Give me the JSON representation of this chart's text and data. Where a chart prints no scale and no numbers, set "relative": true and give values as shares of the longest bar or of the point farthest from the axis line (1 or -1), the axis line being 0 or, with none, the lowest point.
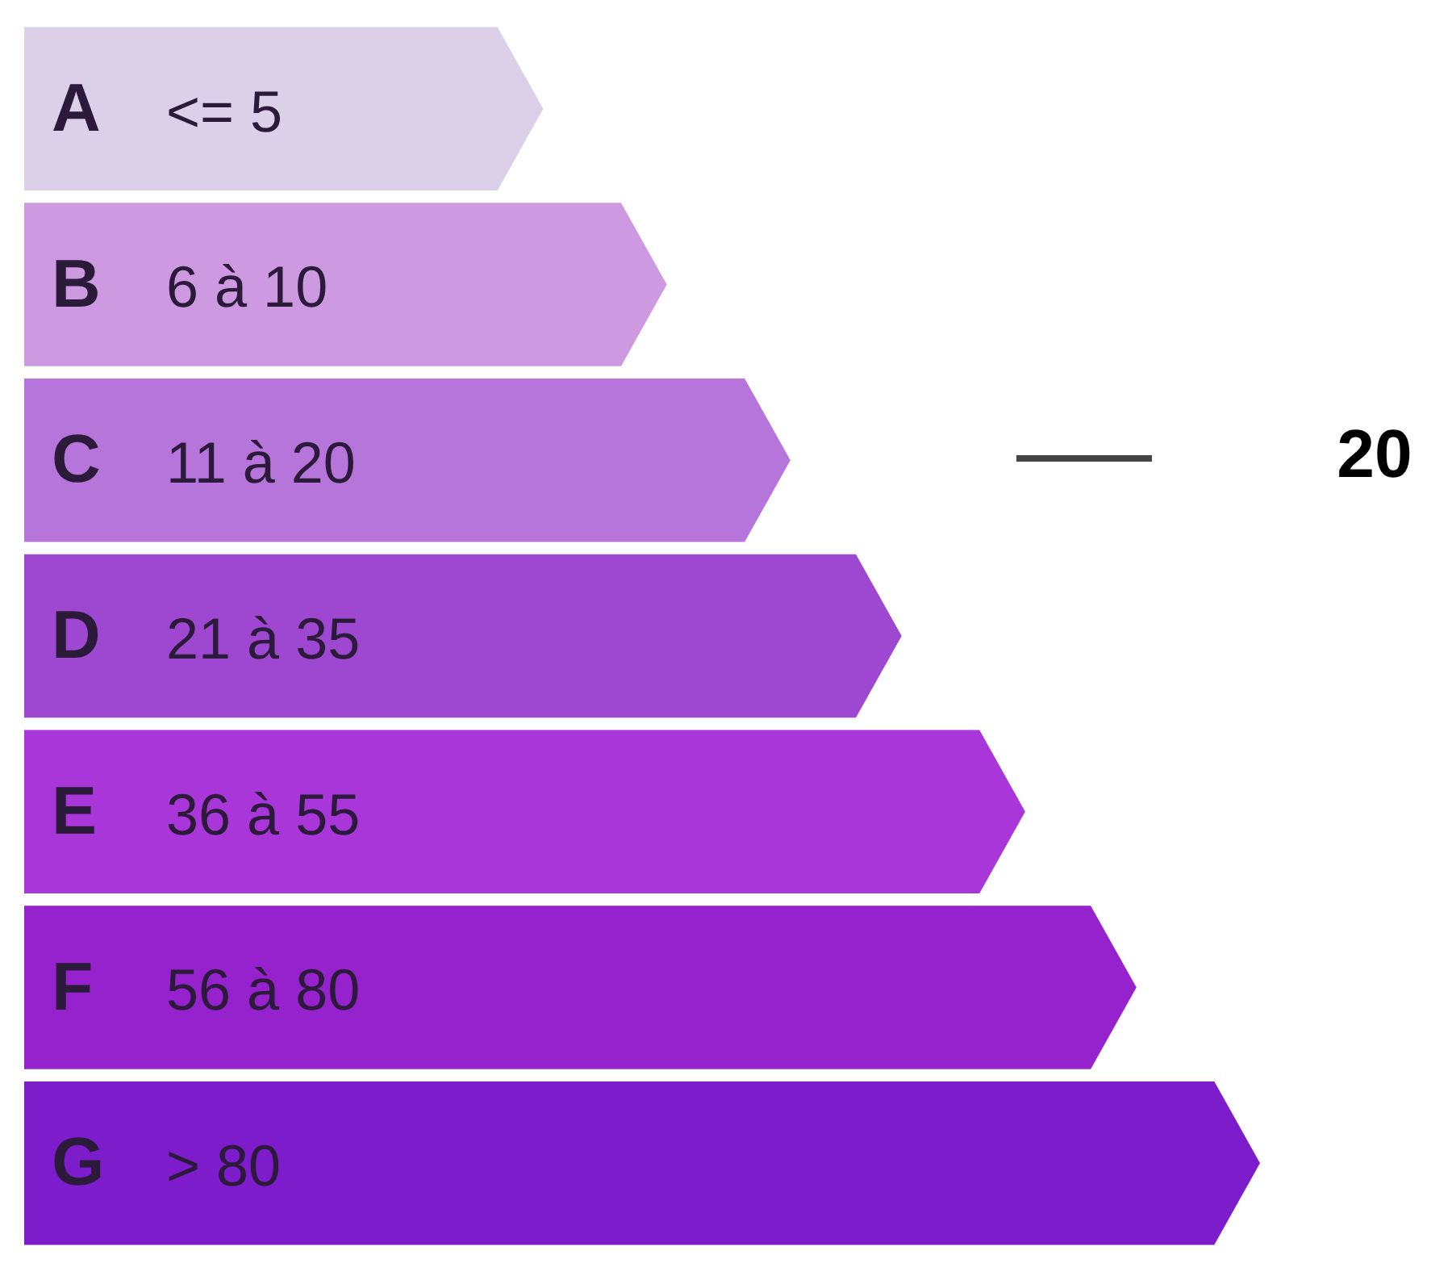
{
  "chart_data": {
    "type": "bar",
    "orientation": "horizontal",
    "relative": true,
    "categories": [
      "A",
      "B",
      "C",
      "D",
      "E",
      "F",
      "G"
    ],
    "values": [
      0.42,
      0.52,
      0.62,
      0.71,
      0.81,
      0.9,
      1
    ],
    "colors": [
      "#dcd0e8",
      "#cd9ae2",
      "#b675da",
      "#9e48d2",
      "#a836d8",
      "#9522cc",
      "#7d1ccb"
    ],
    "legend": false,
    "annotations": [
      "<= 5",
      "6 à 10",
      "11 à 20",
      "21 à 35",
      "36 à 55",
      "56 à 80",
      "> 80",
      "20"
    ]
  }
}
